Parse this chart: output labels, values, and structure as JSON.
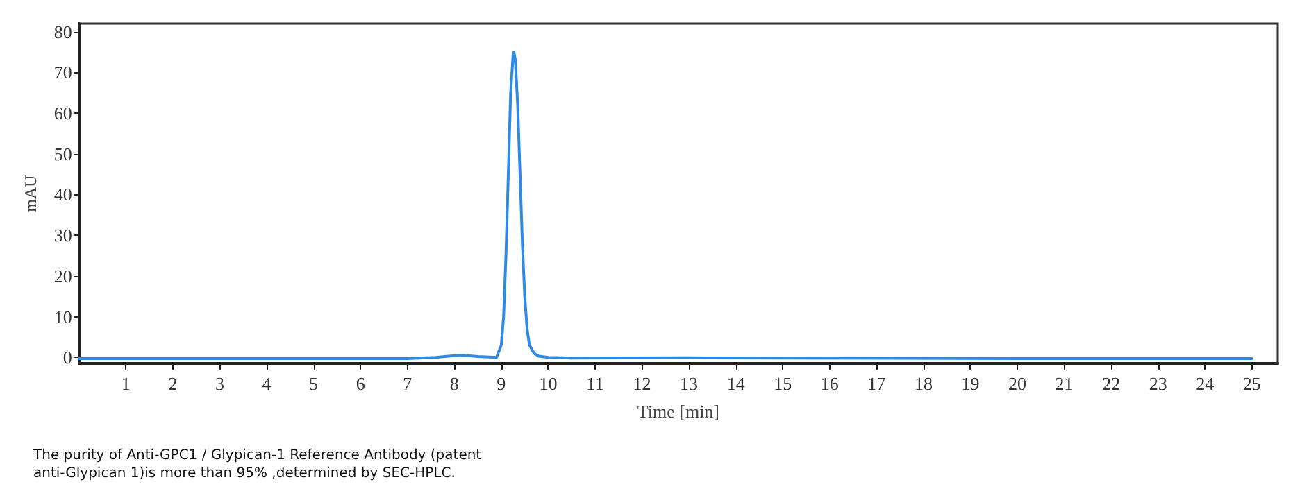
{
  "chart_data": {
    "type": "line",
    "xlabel": "Time [min]",
    "ylabel": "mAU",
    "x": [
      0,
      3,
      7,
      7.6,
      8.0,
      8.2,
      8.5,
      8.9,
      9.0,
      9.05,
      9.1,
      9.15,
      9.2,
      9.25,
      9.27,
      9.3,
      9.35,
      9.4,
      9.45,
      9.5,
      9.55,
      9.6,
      9.7,
      9.8,
      10,
      10.5,
      13,
      15,
      20,
      25
    ],
    "series": [
      {
        "color": "#2f8ae6",
        "values": [
          -0.3,
          -0.3,
          -0.3,
          0,
          0.4,
          0.5,
          0.2,
          0,
          3,
          10,
          25,
          45,
          65,
          74,
          75,
          73,
          62,
          45,
          28,
          15,
          7,
          3,
          1,
          0.3,
          0,
          -0.2,
          -0.1,
          -0.2,
          -0.3,
          -0.3
        ]
      }
    ],
    "xlim": [
      0,
      25.55
    ],
    "xticks": [
      1,
      2,
      3,
      4,
      5,
      6,
      7,
      8,
      9,
      10,
      11,
      12,
      13,
      14,
      15,
      16,
      17,
      18,
      19,
      20,
      21,
      22,
      23,
      24,
      25
    ],
    "ylim": [
      -1.5,
      82
    ],
    "yticks": [
      0,
      10,
      20,
      30,
      40,
      50,
      60,
      70,
      80
    ],
    "grid": false,
    "marker": "none",
    "line_style": "solid",
    "annotations": [
      "The purity of Anti-GPC1 / Glypican-1 Reference Antibody (patent anti-Glypican 1)is more than 95% ,determined by SEC-HPLC."
    ]
  }
}
